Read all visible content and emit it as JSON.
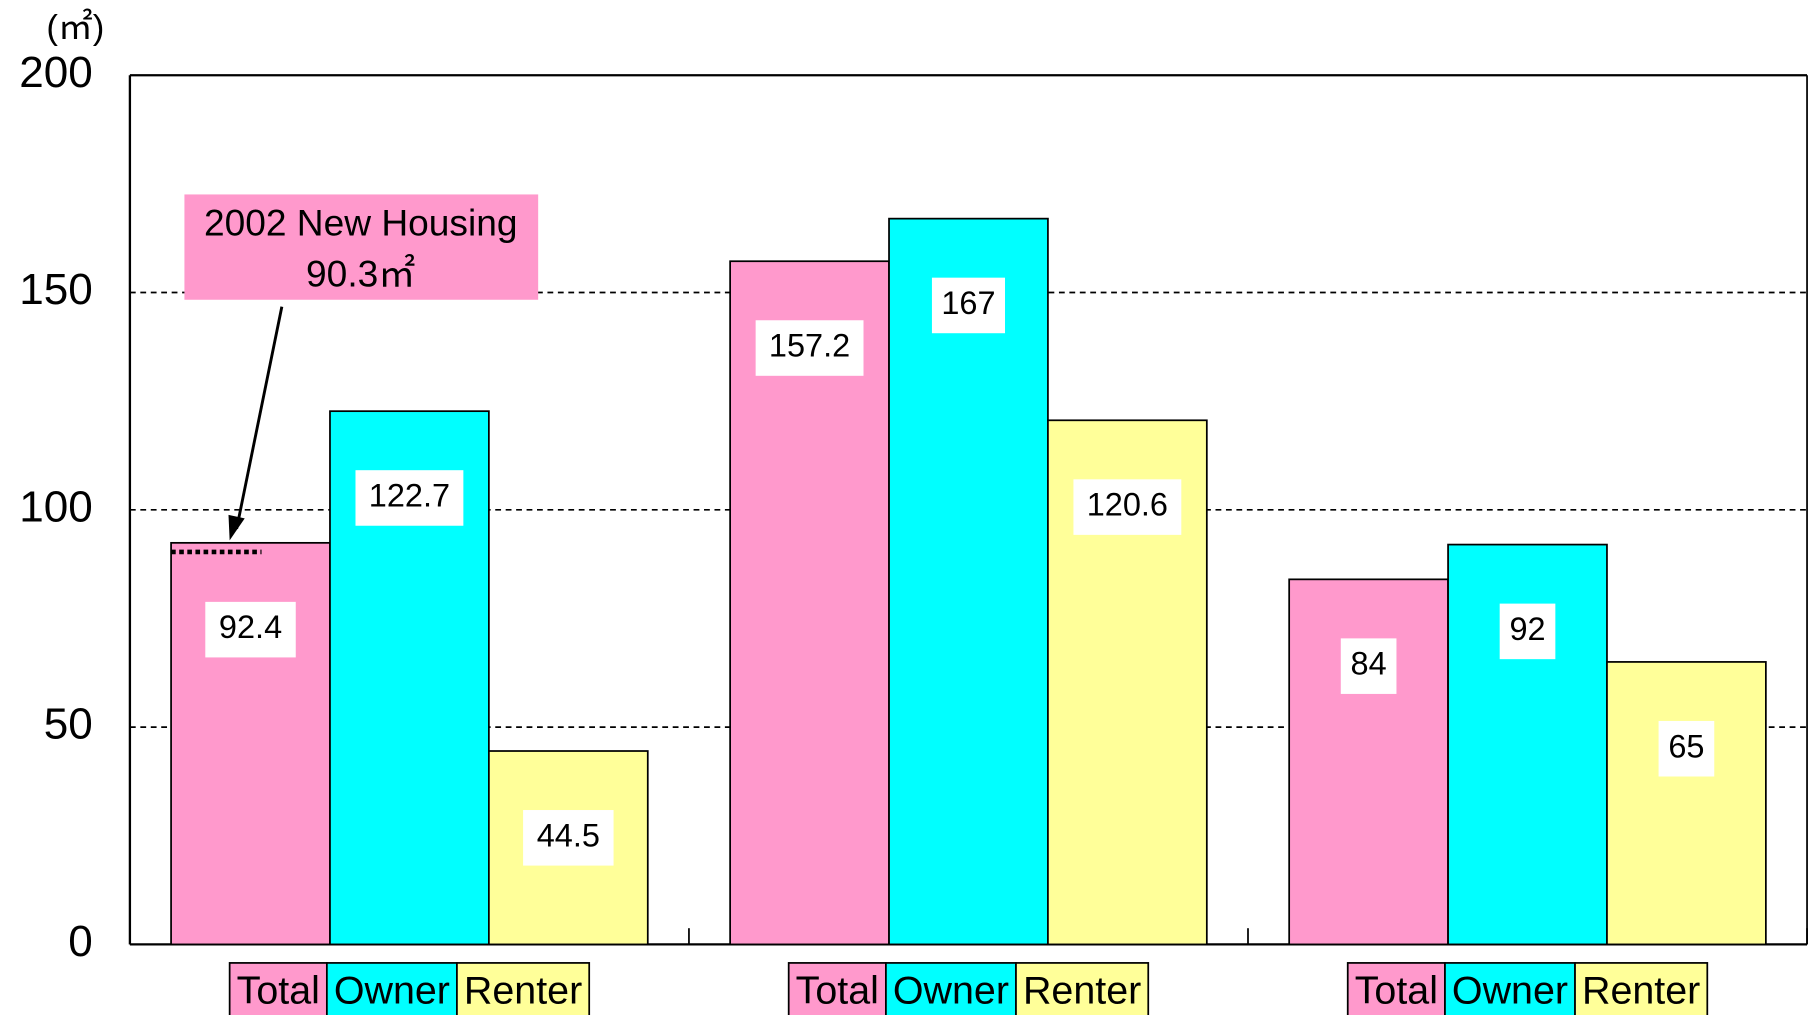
{
  "chart_data": {
    "type": "bar",
    "y_unit": "(㎡)",
    "categories": [
      null,
      null,
      null
    ],
    "series": [
      {
        "name": "Total",
        "color": "#ff99cc",
        "values": [
          92.4,
          157.2,
          84
        ]
      },
      {
        "name": "Owner",
        "color": "#00ffff",
        "values": [
          122.7,
          167,
          92
        ]
      },
      {
        "name": "Renter",
        "color": "#ffff99",
        "values": [
          44.5,
          120.6,
          65
        ]
      }
    ],
    "ylim": [
      0,
      200
    ],
    "yticks": [
      0,
      50,
      100,
      150,
      200
    ],
    "grid": true,
    "annotation": {
      "text": "2002 New Housing",
      "value_label": "90.3㎡",
      "value": 90.3
    }
  }
}
